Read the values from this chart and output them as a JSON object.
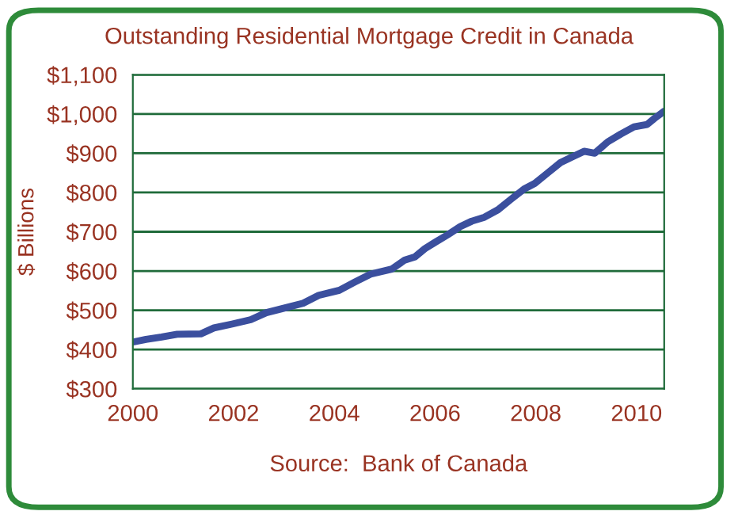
{
  "chart_data": {
    "type": "line",
    "title": "Outstanding Residential Mortgage Credit in Canada",
    "ylabel": "$ Billions",
    "annotations": [
      "Source:  Bank of Canada"
    ],
    "x": [
      2000.0,
      2000.26,
      2000.57,
      2000.88,
      2001.35,
      2001.61,
      2001.97,
      2002.34,
      2002.65,
      2002.96,
      2003.38,
      2003.69,
      2004.1,
      2004.41,
      2004.72,
      2005.14,
      2005.4,
      2005.6,
      2005.8,
      2006.0,
      2006.26,
      2006.5,
      2006.73,
      2006.98,
      2007.25,
      2007.51,
      2007.77,
      2007.98,
      2008.23,
      2008.49,
      2008.75,
      2008.96,
      2009.17,
      2009.43,
      2009.69,
      2009.95,
      2010.21,
      2010.36,
      2010.55
    ],
    "series": [
      {
        "color": "#3b4f9e",
        "values": [
          419,
          426,
          432,
          439,
          440,
          455,
          465,
          476,
          494,
          504,
          518,
          538,
          551,
          572,
          592,
          605,
          628,
          636,
          657,
          673,
          693,
          713,
          727,
          737,
          756,
          783,
          809,
          823,
          849,
          876,
          892,
          905,
          900,
          929,
          949,
          967,
          973,
          989,
          1007
        ]
      }
    ],
    "xlim": [
      2000,
      2010.55
    ],
    "xticks": [
      2000,
      2002,
      2004,
      2006,
      2008,
      2010
    ],
    "ylim": [
      300,
      1100
    ],
    "yticks": [
      {
        "value": 300,
        "label": "$300"
      },
      {
        "value": 400,
        "label": "$400"
      },
      {
        "value": 500,
        "label": "$500"
      },
      {
        "value": 600,
        "label": "$600"
      },
      {
        "value": 700,
        "label": "$700"
      },
      {
        "value": 800,
        "label": "$800"
      },
      {
        "value": 900,
        "label": "$900"
      },
      {
        "value": 1000,
        "label": "$1,000"
      },
      {
        "value": 1100,
        "label": "$1,100"
      }
    ],
    "grid": "y",
    "legend": false
  }
}
